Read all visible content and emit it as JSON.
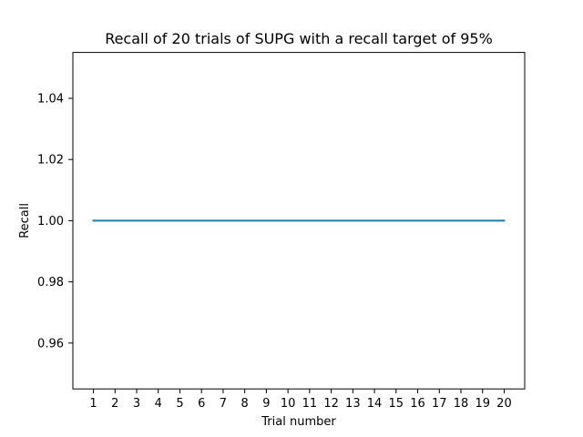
{
  "chart_data": {
    "type": "line",
    "title": "Recall of 20 trials of SUPG with a recall target of 95%",
    "xlabel": "Trial number",
    "ylabel": "Recall",
    "x": [
      1,
      2,
      3,
      4,
      5,
      6,
      7,
      8,
      9,
      10,
      11,
      12,
      13,
      14,
      15,
      16,
      17,
      18,
      19,
      20
    ],
    "series": [
      {
        "values": [
          1,
          1,
          1,
          1,
          1,
          1,
          1,
          1,
          1,
          1,
          1,
          1,
          1,
          1,
          1,
          1,
          1,
          1,
          1,
          1
        ],
        "color": "#1f77b4"
      }
    ],
    "x_ticks": [
      "1",
      "2",
      "3",
      "4",
      "5",
      "6",
      "7",
      "8",
      "9",
      "10",
      "11",
      "12",
      "13",
      "14",
      "15",
      "16",
      "17",
      "18",
      "19",
      "20"
    ],
    "y_ticks": [
      "0.96",
      "0.98",
      "1.00",
      "1.02",
      "1.04"
    ],
    "xlim": [
      0.05,
      20.95
    ],
    "ylim": [
      0.945,
      1.055
    ],
    "grid": false,
    "legend": "none"
  }
}
